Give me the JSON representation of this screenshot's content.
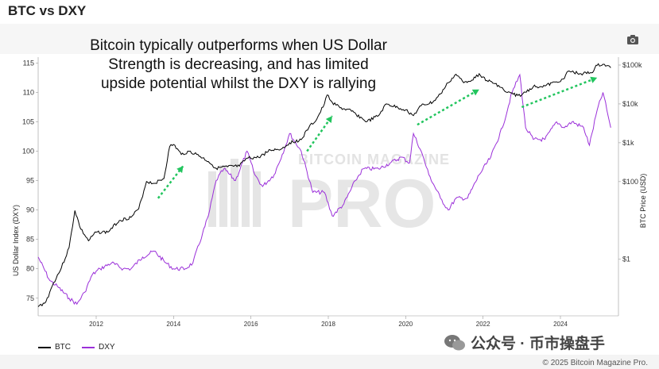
{
  "header": {
    "title": "BTC vs DXY"
  },
  "annotation": {
    "lines": [
      "Bitcoin typically outperforms when US Dollar",
      "Strength is decreasing, and has limited",
      "upside potential whilst the DXY is rallying"
    ]
  },
  "toolbar": {
    "camera_icon": "camera-icon"
  },
  "watermark": {
    "small": "BITCOIN MAGAZINE",
    "big": "PRO"
  },
  "footer": {
    "credit": "© 2025 Bitcoin Magazine Pro.",
    "wechat_label": "公众号 · 币市操盘手"
  },
  "colors": {
    "btc": "#000000",
    "dxy": "#9b30d9",
    "arrow": "#22c55e"
  },
  "chart_data": {
    "type": "line",
    "title": "BTC vs DXY",
    "xlabel": "",
    "x_ticks": [
      "2012",
      "2014",
      "2016",
      "2018",
      "2020",
      "2022",
      "2024"
    ],
    "xlim": [
      2010.5,
      2025.5
    ],
    "left_axis": {
      "label": "US Dollar Index (DXY)",
      "ticks": [
        75,
        80,
        85,
        90,
        95,
        100,
        105,
        110,
        115
      ],
      "range": [
        72,
        116
      ]
    },
    "right_axis": {
      "label": "BTC Price (USD)",
      "scale": "log",
      "ticks": [
        "$1",
        "$100",
        "$1k",
        "$10k",
        "$100k"
      ],
      "tick_values": [
        1,
        100,
        1000,
        10000,
        100000
      ],
      "range": [
        0.035,
        160000
      ]
    },
    "grid": false,
    "legend": "bottom-left",
    "series": [
      {
        "name": "BTC",
        "axis": "right",
        "x": [
          2010.5,
          2010.7,
          2010.9,
          2011.1,
          2011.3,
          2011.45,
          2011.6,
          2011.8,
          2012.0,
          2012.3,
          2012.6,
          2012.9,
          2013.1,
          2013.3,
          2013.5,
          2013.75,
          2013.9,
          2014.0,
          2014.2,
          2014.4,
          2014.6,
          2014.9,
          2015.1,
          2015.4,
          2015.7,
          2015.9,
          2016.2,
          2016.5,
          2016.8,
          2017.0,
          2017.3,
          2017.5,
          2017.7,
          2017.9,
          2017.97,
          2018.1,
          2018.3,
          2018.6,
          2018.9,
          2019.0,
          2019.3,
          2019.5,
          2019.8,
          2020.0,
          2020.2,
          2020.4,
          2020.7,
          2020.9,
          2021.1,
          2021.3,
          2021.5,
          2021.8,
          2021.9,
          2022.1,
          2022.4,
          2022.6,
          2022.9,
          2023.0,
          2023.3,
          2023.6,
          2023.9,
          2024.1,
          2024.2,
          2024.5,
          2024.8,
          2024.95,
          2025.1,
          2025.3
        ],
        "values": [
          0.06,
          0.08,
          0.25,
          0.6,
          2,
          18,
          6,
          3,
          5,
          5,
          10,
          12,
          20,
          100,
          90,
          120,
          800,
          900,
          500,
          600,
          500,
          330,
          220,
          240,
          250,
          400,
          420,
          650,
          700,
          1000,
          1200,
          2500,
          4000,
          10000,
          17000,
          11000,
          8000,
          6500,
          4000,
          3500,
          5000,
          10000,
          8000,
          7000,
          5000,
          9000,
          11000,
          18000,
          35000,
          58000,
          35000,
          47000,
          60000,
          40000,
          30000,
          20000,
          16500,
          17000,
          28000,
          29000,
          37000,
          45000,
          70000,
          60000,
          63000,
          98000,
          105000,
          85000
        ]
      },
      {
        "name": "DXY",
        "axis": "left",
        "x": [
          2010.5,
          2010.8,
          2011.0,
          2011.3,
          2011.5,
          2011.7,
          2011.9,
          2012.1,
          2012.4,
          2012.7,
          2012.9,
          2013.2,
          2013.5,
          2013.8,
          2014.0,
          2014.3,
          2014.5,
          2014.75,
          2014.9,
          2015.1,
          2015.3,
          2015.6,
          2015.9,
          2016.1,
          2016.3,
          2016.6,
          2016.9,
          2017.0,
          2017.3,
          2017.6,
          2017.9,
          2018.1,
          2018.4,
          2018.7,
          2018.9,
          2019.3,
          2019.6,
          2019.9,
          2020.1,
          2020.2,
          2020.4,
          2020.6,
          2020.9,
          2021.1,
          2021.3,
          2021.6,
          2021.9,
          2022.2,
          2022.5,
          2022.75,
          2022.95,
          2023.1,
          2023.3,
          2023.6,
          2023.9,
          2024.1,
          2024.3,
          2024.6,
          2024.75,
          2024.95,
          2025.1,
          2025.2,
          2025.3
        ],
        "values": [
          82,
          78,
          77,
          75,
          74,
          76,
          79,
          80,
          81,
          80,
          80,
          82,
          83,
          81,
          80,
          80,
          81,
          86,
          89,
          95,
          97,
          95,
          100,
          96,
          94,
          96,
          101,
          103,
          100,
          93,
          93,
          89,
          91,
          95,
          97,
          97,
          98,
          99,
          98,
          103,
          100,
          96,
          92,
          90,
          92,
          92,
          96,
          99,
          104,
          110,
          113,
          104,
          102,
          102,
          105,
          104,
          105,
          104,
          101,
          107,
          110,
          107,
          104
        ]
      }
    ],
    "annotations": [
      {
        "type": "arrow",
        "label": "",
        "from": [
          2013.6,
          92
        ],
        "to": [
          2014.25,
          97.5
        ]
      },
      {
        "type": "arrow",
        "label": "",
        "from": [
          2017.45,
          100
        ],
        "to": [
          2018.1,
          106
        ]
      },
      {
        "type": "arrow",
        "label": "",
        "from": [
          2020.3,
          104.5
        ],
        "to": [
          2021.9,
          110.5
        ]
      },
      {
        "type": "arrow",
        "label": "",
        "from": [
          2023.0,
          107.5
        ],
        "to": [
          2024.95,
          112.5
        ]
      }
    ]
  }
}
